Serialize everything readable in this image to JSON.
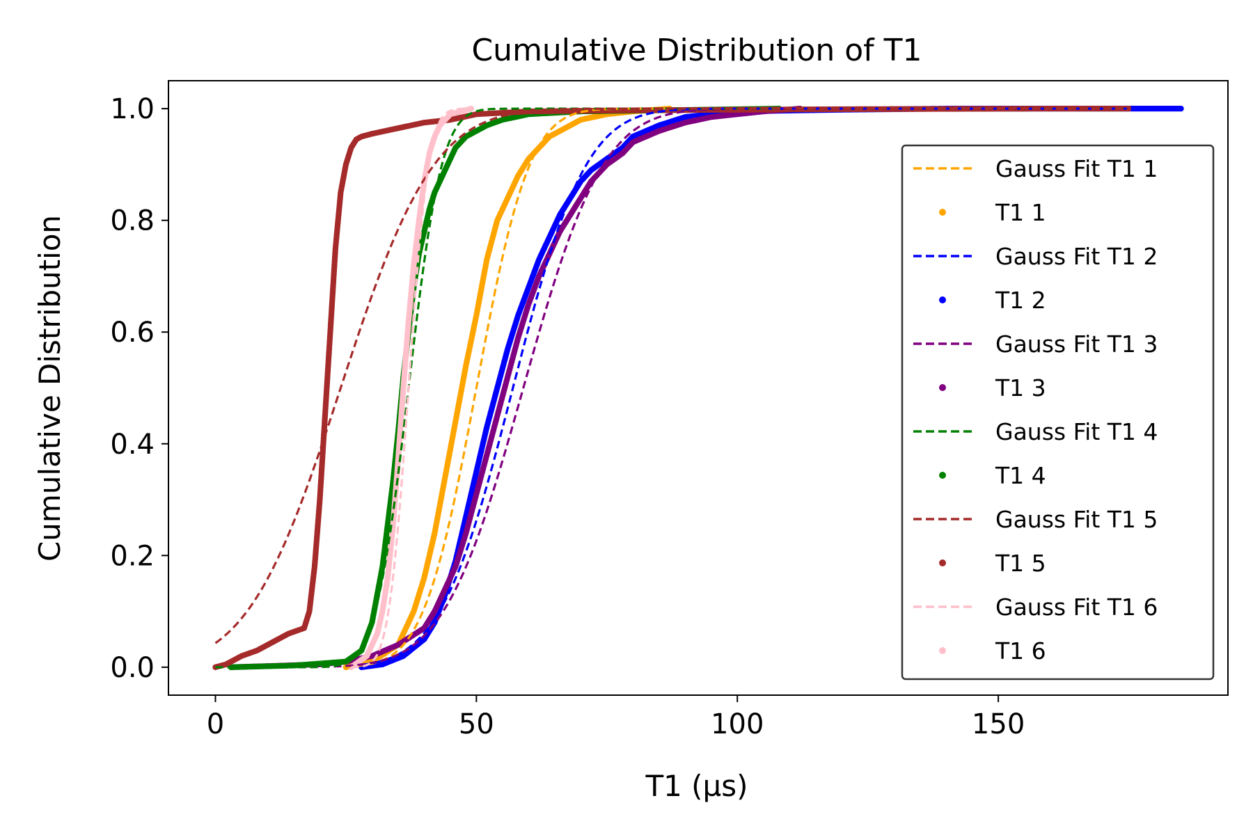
{
  "chart_data": {
    "type": "line",
    "title": "Cumulative Distribution of T1",
    "xlabel": "T1 (µs)",
    "ylabel": "Cumulative Distribution",
    "xlim": [
      -9,
      194
    ],
    "ylim": [
      -0.05,
      1.05
    ],
    "xticks": [
      0,
      50,
      100,
      150
    ],
    "xtick_labels": [
      "0",
      "50",
      "100",
      "150"
    ],
    "yticks": [
      0.0,
      0.2,
      0.4,
      0.6,
      0.8,
      1.0
    ],
    "ytick_labels": [
      "0.0",
      "0.2",
      "0.4",
      "0.6",
      "0.8",
      "1.0"
    ],
    "grid": false,
    "legend_position": "right",
    "series": [
      {
        "name": "T1 1",
        "fit_name": "Gauss Fit T1 1",
        "color": "#ffa500",
        "fit": {
          "mu": 50,
          "sigma": 8,
          "xmin": 25,
          "xmax": 88
        },
        "x": [
          25,
          30,
          35,
          38,
          40,
          42,
          44,
          46,
          48,
          50,
          52,
          54,
          56,
          58,
          60,
          62,
          64,
          66,
          70,
          75,
          80,
          87
        ],
        "y": [
          0.0,
          0.01,
          0.04,
          0.1,
          0.16,
          0.24,
          0.34,
          0.44,
          0.54,
          0.63,
          0.73,
          0.8,
          0.84,
          0.88,
          0.91,
          0.93,
          0.95,
          0.96,
          0.98,
          0.99,
          0.995,
          1.0
        ]
      },
      {
        "name": "T1 2",
        "fit_name": "Gauss Fit T1 2",
        "color": "#0000ff",
        "fit": {
          "mu": 57,
          "sigma": 11,
          "xmin": 28,
          "xmax": 185
        },
        "x": [
          28,
          32,
          36,
          40,
          42,
          44,
          46,
          48,
          50,
          52,
          54,
          56,
          58,
          60,
          62,
          64,
          66,
          68,
          70,
          72,
          75,
          78,
          80,
          85,
          90,
          100,
          120,
          140,
          160,
          185
        ],
        "y": [
          0.0,
          0.005,
          0.02,
          0.05,
          0.08,
          0.13,
          0.19,
          0.27,
          0.35,
          0.43,
          0.5,
          0.57,
          0.63,
          0.68,
          0.73,
          0.77,
          0.81,
          0.84,
          0.87,
          0.89,
          0.91,
          0.93,
          0.95,
          0.97,
          0.985,
          0.995,
          0.998,
          1.0,
          1.0,
          1.0
        ]
      },
      {
        "name": "T1 3",
        "fit_name": "Gauss Fit T1 3",
        "color": "#800080",
        "fit": {
          "mu": 59,
          "sigma": 12,
          "xmin": 0,
          "xmax": 112
        },
        "x": [
          3,
          10,
          20,
          25,
          30,
          35,
          40,
          42,
          44,
          46,
          48,
          50,
          52,
          54,
          56,
          58,
          60,
          62,
          64,
          66,
          68,
          70,
          72,
          75,
          78,
          80,
          85,
          90,
          95,
          100,
          105,
          112
        ],
        "y": [
          0.0,
          0.002,
          0.005,
          0.01,
          0.02,
          0.04,
          0.07,
          0.1,
          0.14,
          0.18,
          0.24,
          0.31,
          0.38,
          0.45,
          0.52,
          0.59,
          0.65,
          0.7,
          0.74,
          0.78,
          0.81,
          0.84,
          0.87,
          0.9,
          0.92,
          0.94,
          0.96,
          0.975,
          0.985,
          0.99,
          0.995,
          1.0
        ]
      },
      {
        "name": "T1 4",
        "fit_name": "Gauss Fit T1 4",
        "color": "#008000",
        "fit": {
          "mu": 37,
          "sigma": 5,
          "xmin": 0,
          "xmax": 108
        },
        "x": [
          3,
          15,
          25,
          28,
          30,
          32,
          34,
          35,
          36,
          37,
          38,
          39,
          40,
          41,
          42,
          43,
          44,
          45,
          46,
          48,
          50,
          52,
          55,
          60,
          70,
          108
        ],
        "y": [
          0.0,
          0.003,
          0.01,
          0.03,
          0.08,
          0.18,
          0.33,
          0.42,
          0.52,
          0.6,
          0.68,
          0.74,
          0.78,
          0.82,
          0.85,
          0.87,
          0.89,
          0.91,
          0.93,
          0.95,
          0.96,
          0.97,
          0.98,
          0.99,
          0.995,
          1.0
        ]
      },
      {
        "name": "T1 5",
        "fit_name": "Gauss Fit T1 5",
        "color": "#a52a2a",
        "fit": {
          "mu": 24,
          "sigma": 14,
          "xmin": 0,
          "xmax": 175
        },
        "x": [
          0,
          2,
          5,
          8,
          11,
          14,
          17,
          18,
          19,
          20,
          21,
          22,
          23,
          24,
          25,
          26,
          27,
          28,
          30,
          35,
          40,
          45,
          50,
          60,
          80,
          120,
          160,
          175
        ],
        "y": [
          0.0,
          0.005,
          0.02,
          0.03,
          0.045,
          0.06,
          0.07,
          0.1,
          0.18,
          0.3,
          0.45,
          0.6,
          0.75,
          0.85,
          0.9,
          0.93,
          0.945,
          0.95,
          0.955,
          0.965,
          0.975,
          0.98,
          0.99,
          0.995,
          0.997,
          0.999,
          1.0,
          1.0
        ]
      },
      {
        "name": "T1 6",
        "fit_name": "Gauss Fit T1 6",
        "color": "#ffc0cb",
        "fit": {
          "mu": 37,
          "sigma": 3,
          "xmin": 26,
          "xmax": 48
        },
        "x": [
          26,
          29,
          31,
          32,
          33,
          34,
          35,
          36,
          37,
          38,
          39,
          40,
          41,
          42,
          43,
          45,
          47,
          49
        ],
        "y": [
          0.0,
          0.02,
          0.06,
          0.1,
          0.16,
          0.25,
          0.37,
          0.5,
          0.62,
          0.72,
          0.8,
          0.87,
          0.92,
          0.95,
          0.97,
          0.99,
          0.995,
          1.0
        ]
      }
    ]
  }
}
